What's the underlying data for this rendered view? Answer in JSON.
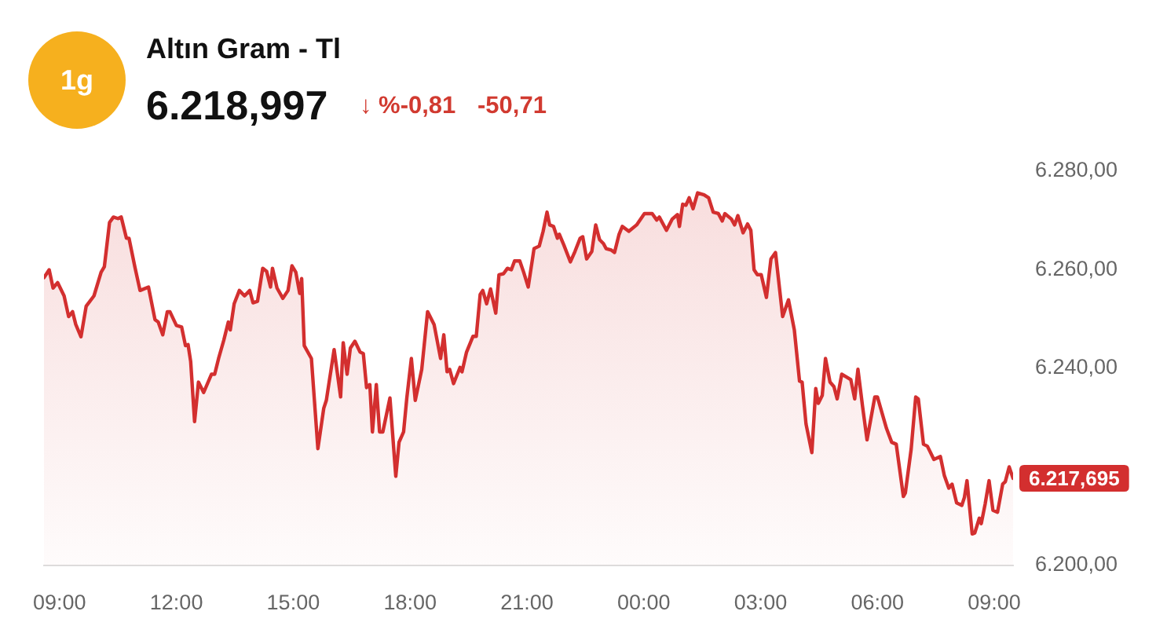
{
  "chart_data": {
    "type": "area",
    "title": "Altın Gram - Tl",
    "subtitle": "6.218,997",
    "annotations": [
      "1g",
      "↓ %-0,81",
      "-50,71",
      "6.217,695"
    ],
    "color": "#d32f2f",
    "x": [
      "--01-01T08:36",
      "--01-01T08:44",
      "--01-01T08:50",
      "--01-01T08:57",
      "--01-01T09:07",
      "--01-01T09:14",
      "--01-01T09:20",
      "--01-01T09:25",
      "--01-01T09:33",
      "--01-01T09:41",
      "--01-01T09:53",
      "--01-01T10:04",
      "--01-01T10:09",
      "--01-01T10:17",
      "--01-01T10:23",
      "--01-01T10:30",
      "--01-01T10:35",
      "--01-01T10:43",
      "--01-01T10:47",
      "--01-01T10:56",
      "--01-01T11:04",
      "--01-01T11:17",
      "--01-01T11:27",
      "--01-01T11:32",
      "--01-01T11:39",
      "--01-01T11:46",
      "--01-01T11:50",
      "--01-01T12:00",
      "--01-01T12:08",
      "--01-01T12:14",
      "--01-01T12:18",
      "--01-01T12:22",
      "--01-01T12:28",
      "--01-01T12:34",
      "--01-01T12:42",
      "--01-01T12:54",
      "--01-01T12:59",
      "--01-01T13:05",
      "--01-01T13:13",
      "--01-01T13:20",
      "--01-01T13:23",
      "--01-01T13:29",
      "--01-01T13:37",
      "--01-01T13:45",
      "--01-01T13:53",
      "--01-01T13:58",
      "--01-01T14:05",
      "--01-01T14:13",
      "--01-01T14:19",
      "--01-01T14:25",
      "--01-01T14:28",
      "--01-01T14:35",
      "--01-01T14:44",
      "--01-01T14:52",
      "--01-01T14:58",
      "--01-01T15:04",
      "--01-01T15:10",
      "--01-01T15:13",
      "--01-01T15:17",
      "--01-01T15:28",
      "--01-01T15:38",
      "--01-01T15:47",
      "--01-01T15:51",
      "--01-01T16:03",
      "--01-01T16:13",
      "--01-01T16:17",
      "--01-01T16:23",
      "--01-01T16:28",
      "--01-01T16:35",
      "--01-01T16:43",
      "--01-01T16:48",
      "--01-01T16:53",
      "--01-01T16:58",
      "--01-01T17:02",
      "--01-01T17:08",
      "--01-01T17:13",
      "--01-01T17:18",
      "--01-01T17:29",
      "--01-01T17:38",
      "--01-01T17:43",
      "--01-01T17:50",
      "--01-01T17:55",
      "--01-01T18:02",
      "--01-01T18:08",
      "--01-01T18:18",
      "--01-01T18:27",
      "--01-01T18:37",
      "--01-01T18:47",
      "--01-01T18:52",
      "--01-01T18:57",
      "--01-01T19:01",
      "--01-01T19:07",
      "--01-01T19:17",
      "--01-01T19:20",
      "--01-01T19:27",
      "--01-01T19:37",
      "--01-01T19:42",
      "--01-01T19:48",
      "--01-01T19:52",
      "--01-01T19:58",
      "--01-01T20:04",
      "--01-01T20:12",
      "--01-01T20:17",
      "--01-01T20:24",
      "--01-01T20:30",
      "--01-01T20:36",
      "--01-01T20:41",
      "--01-01T20:49",
      "--01-01T20:55",
      "--01-01T21:02",
      "--01-01T21:11",
      "--01-01T21:19",
      "--01-01T21:25",
      "--01-01T21:31",
      "--01-01T21:35",
      "--01-01T21:41",
      "--01-01T21:47",
      "--01-01T21:50",
      "--01-01T21:57",
      "--01-01T22:07",
      "--01-01T22:14",
      "--01-01T22:22",
      "--01-01T22:26",
      "--01-01T22:32",
      "--01-01T22:40",
      "--01-01T22:46",
      "--01-01T22:52",
      "--01-01T22:58",
      "--01-01T23:02",
      "--01-01T23:10",
      "--01-01T23:15",
      "--01-01T23:22",
      "--01-01T23:27",
      "--01-01T23:37",
      "--01-01T23:49",
      "--01-02T00:01",
      "--01-02T00:13",
      "--01-02T00:20",
      "--01-02T00:24",
      "--01-02T00:35",
      "--01-02T00:44",
      "--01-02T00:52",
      "--01-02T00:55",
      "--01-02T01:00",
      "--01-02T01:05",
      "--01-02T01:10",
      "--01-02T01:16",
      "--01-02T01:23",
      "--01-02T01:33",
      "--01-02T01:40",
      "--01-02T01:47",
      "--01-02T01:55",
      "--01-02T02:01",
      "--01-02T02:05",
      "--01-02T02:15",
      "--01-02T02:20",
      "--01-02T02:25",
      "--01-02T02:33",
      "--01-02T02:40",
      "--01-02T02:45",
      "--01-02T02:50",
      "--01-02T02:55",
      "--01-02T03:01",
      "--01-02T03:09",
      "--01-02T03:16",
      "--01-02T03:23",
      "--01-02T03:34",
      "--01-02T03:43",
      "--01-02T03:52",
      "--01-02T04:00",
      "--01-02T04:04",
      "--01-02T04:10",
      "--01-02T04:19",
      "--01-02T04:25",
      "--01-02T04:29",
      "--01-02T04:35",
      "--01-02T04:40",
      "--01-02T04:47",
      "--01-02T04:53",
      "--01-02T04:58",
      "--01-02T05:05",
      "--01-02T05:13",
      "--01-02T05:19",
      "--01-02T05:25",
      "--01-02T05:30",
      "--01-02T05:37",
      "--01-02T05:44",
      "--01-02T05:56",
      "--01-02T06:00",
      "--01-02T06:14",
      "--01-02T06:22",
      "--01-02T06:29",
      "--01-02T06:40",
      "--01-02T06:43",
      "--01-02T06:52",
      "--01-02T06:59",
      "--01-02T07:03",
      "--01-02T07:11",
      "--01-02T07:17",
      "--01-02T07:27",
      "--01-02T07:37",
      "--01-02T07:43",
      "--01-02T07:50",
      "--01-02T07:55",
      "--01-02T08:02",
      "--01-02T08:10",
      "--01-02T08:14",
      "--01-02T08:18",
      "--01-02T08:26",
      "--01-02T08:30",
      "--01-02T08:37",
      "--01-02T08:40",
      "--01-02T08:46",
      "--01-02T08:52",
      "--01-02T08:58",
      "--01-02T09:05",
      "--01-02T09:13",
      "--01-02T09:17",
      "--01-02T09:23",
      "--01-02T09:29"
    ],
    "values": [
      6258.4,
      6260.0,
      6256.3,
      6257.4,
      6254.7,
      6250.5,
      6251.5,
      6248.9,
      6246.4,
      6252.6,
      6254.7,
      6259.5,
      6260.6,
      6269.6,
      6270.7,
      6270.4,
      6270.7,
      6266.4,
      6266.4,
      6260.6,
      6255.8,
      6256.5,
      6249.9,
      6249.4,
      6246.8,
      6251.5,
      6251.5,
      6248.7,
      6248.4,
      6244.6,
      6244.8,
      6241.4,
      6229.2,
      6237.2,
      6235.1,
      6238.8,
      6238.8,
      6242.0,
      6245.7,
      6249.4,
      6247.8,
      6253.1,
      6255.8,
      6254.7,
      6255.8,
      6253.3,
      6253.6,
      6260.3,
      6259.7,
      6256.5,
      6260.3,
      6256.3,
      6254.2,
      6255.8,
      6260.8,
      6259.5,
      6255.2,
      6258.2,
      6244.6,
      6242.0,
      6223.7,
      6231.9,
      6233.5,
      6243.8,
      6234.2,
      6245.2,
      6238.8,
      6244.1,
      6245.5,
      6243.3,
      6243.0,
      6236.1,
      6236.7,
      6227.1,
      6236.7,
      6227.1,
      6227.1,
      6234.0,
      6218.1,
      6225.0,
      6227.1,
      6234.0,
      6242.0,
      6233.5,
      6239.8,
      6251.5,
      6248.9,
      6242.0,
      6246.8,
      6239.3,
      6239.8,
      6236.9,
      6240.2,
      6239.3,
      6243.3,
      6246.5,
      6246.5,
      6255.0,
      6255.8,
      6253.1,
      6256.1,
      6251.2,
      6259.0,
      6259.2,
      6260.3,
      6260.0,
      6261.8,
      6261.8,
      6259.5,
      6256.5,
      6264.3,
      6264.8,
      6267.8,
      6271.7,
      6269.1,
      6268.8,
      6266.4,
      6267.2,
      6265.0,
      6261.6,
      6263.7,
      6266.4,
      6266.7,
      6262.2,
      6263.7,
      6269.1,
      6266.1,
      6265.3,
      6264.3,
      6264.0,
      6263.5,
      6267.2,
      6268.8,
      6267.8,
      6269.1,
      6271.4,
      6271.4,
      6270.1,
      6270.7,
      6268.0,
      6270.3,
      6271.2,
      6268.8,
      6273.3,
      6273.1,
      6274.6,
      6272.4,
      6275.6,
      6275.2,
      6274.6,
      6271.7,
      6271.4,
      6269.9,
      6271.4,
      6270.3,
      6269.1,
      6271.0,
      6267.5,
      6269.3,
      6268.0,
      6260.0,
      6259.0,
      6259.0,
      6254.4,
      6262.2,
      6263.5,
      6250.5,
      6253.9,
      6247.8,
      6237.4,
      6237.2,
      6228.7,
      6222.9,
      6235.9,
      6232.9,
      6234.5,
      6242.0,
      6237.2,
      6236.3,
      6233.8,
      6238.8,
      6238.2,
      6237.7,
      6233.8,
      6239.8,
      6232.4,
      6225.5,
      6234.2,
      6234.2,
      6227.8,
      6225.0,
      6224.6,
      6214.0,
      6214.7,
      6223.6,
      6234.2,
      6233.8,
      6224.6,
      6224.2,
      6221.5,
      6222.1,
      6218.3,
      6215.7,
      6216.5,
      6212.7,
      6212.2,
      6213.8,
      6217.2,
      6206.4,
      6206.6,
      6209.6,
      6208.5,
      6212.5,
      6217.2,
      6211.2,
      6210.8,
      6216.5,
      6217.0,
      6220.0,
      6217.7
    ],
    "xlim": [
      "--01-01T08:36",
      "--01-02T09:29"
    ],
    "xticks": [
      {
        "value": "--01-01T09:00",
        "label": "09:00"
      },
      {
        "value": "--01-01T12:00",
        "label": "12:00"
      },
      {
        "value": "--01-01T15:00",
        "label": "15:00"
      },
      {
        "value": "--01-01T18:00",
        "label": "18:00"
      },
      {
        "value": "--01-01T21:00",
        "label": "21:00"
      },
      {
        "value": "--01-02T00:00",
        "label": "00:00"
      },
      {
        "value": "--01-02T03:00",
        "label": "03:00"
      },
      {
        "value": "--01-02T06:00",
        "label": "06:00"
      },
      {
        "value": "--01-02T09:00",
        "label": "09:00"
      }
    ],
    "ylim": [
      6200,
      6280
    ],
    "yticks": [
      {
        "value": 6200,
        "label": "6.200,00"
      },
      {
        "value": 6240,
        "label": "6.240,00"
      },
      {
        "value": 6260,
        "label": "6.260,00"
      },
      {
        "value": 6280,
        "label": "6.280,00"
      }
    ]
  }
}
